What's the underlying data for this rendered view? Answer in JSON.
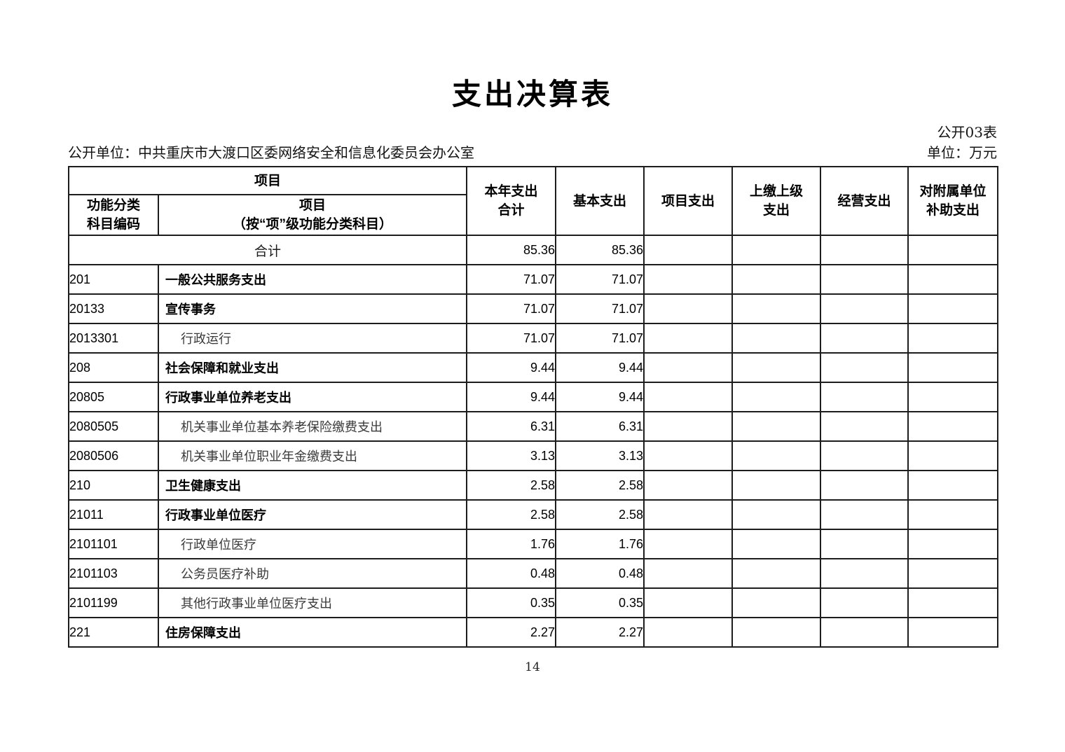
{
  "page": {
    "title": "支出决算表",
    "table_code": "公开03表",
    "disclosure_unit": "公开单位：中共重庆市大渡口区委网络安全和信息化委员会办公室",
    "currency_unit": "单位：万元",
    "page_number": "14"
  },
  "table": {
    "header": {
      "project_group": "项目",
      "code_col": "功能分类\n科目编码",
      "name_col": "项目\n（按“项”级功能分类科目）",
      "value_cols": [
        "本年支出\n合计",
        "基本支出",
        "项目支出",
        "上缴上级\n支出",
        "经营支出",
        "对附属单位\n补助支出"
      ]
    },
    "rows": [
      {
        "code": "",
        "name": "合计",
        "style": "total",
        "values": [
          "85.36",
          "85.36",
          "",
          "",
          "",
          ""
        ]
      },
      {
        "code": "201",
        "name": "一般公共服务支出",
        "style": "bold",
        "values": [
          "71.07",
          "71.07",
          "",
          "",
          "",
          ""
        ]
      },
      {
        "code": "20133",
        "name": "宣传事务",
        "style": "bold",
        "values": [
          "71.07",
          "71.07",
          "",
          "",
          "",
          ""
        ]
      },
      {
        "code": "2013301",
        "name": "行政运行",
        "style": "light",
        "values": [
          "71.07",
          "71.07",
          "",
          "",
          "",
          ""
        ]
      },
      {
        "code": "208",
        "name": "社会保障和就业支出",
        "style": "bold",
        "values": [
          "9.44",
          "9.44",
          "",
          "",
          "",
          ""
        ]
      },
      {
        "code": "20805",
        "name": "行政事业单位养老支出",
        "style": "bold",
        "values": [
          "9.44",
          "9.44",
          "",
          "",
          "",
          ""
        ]
      },
      {
        "code": "2080505",
        "name": "机关事业单位基本养老保险缴费支出",
        "style": "light",
        "values": [
          "6.31",
          "6.31",
          "",
          "",
          "",
          ""
        ]
      },
      {
        "code": "2080506",
        "name": "机关事业单位职业年金缴费支出",
        "style": "light",
        "values": [
          "3.13",
          "3.13",
          "",
          "",
          "",
          ""
        ]
      },
      {
        "code": "210",
        "name": "卫生健康支出",
        "style": "bold",
        "values": [
          "2.58",
          "2.58",
          "",
          "",
          "",
          ""
        ]
      },
      {
        "code": "21011",
        "name": "行政事业单位医疗",
        "style": "bold",
        "values": [
          "2.58",
          "2.58",
          "",
          "",
          "",
          ""
        ]
      },
      {
        "code": "2101101",
        "name": "行政单位医疗",
        "style": "light",
        "values": [
          "1.76",
          "1.76",
          "",
          "",
          "",
          ""
        ]
      },
      {
        "code": "2101103",
        "name": "公务员医疗补助",
        "style": "light",
        "values": [
          "0.48",
          "0.48",
          "",
          "",
          "",
          ""
        ]
      },
      {
        "code": "2101199",
        "name": "其他行政事业单位医疗支出",
        "style": "light",
        "values": [
          "0.35",
          "0.35",
          "",
          "",
          "",
          ""
        ]
      },
      {
        "code": "221",
        "name": "住房保障支出",
        "style": "bold",
        "values": [
          "2.27",
          "2.27",
          "",
          "",
          "",
          ""
        ]
      }
    ]
  }
}
